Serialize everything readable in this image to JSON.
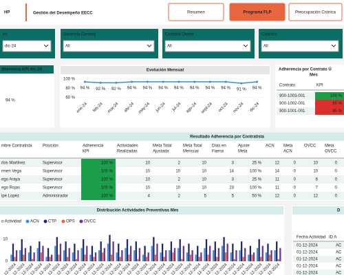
{
  "header": {
    "logo": "HP",
    "title": "Gestión del Desempeño EECC"
  },
  "buttons": [
    "Resumen",
    "Programa FLP",
    "Preocupación Crónica"
  ],
  "filters": [
    {
      "label": "es",
      "value": "dic-24"
    },
    {
      "label": "Gerencia General",
      "value": "All"
    },
    {
      "label": "Contract Owner",
      "value": "All"
    },
    {
      "label": "Contrato",
      "value": "All"
    }
  ],
  "kpi_card": {
    "title": "dherencia KPI dic-24",
    "value": "94 %"
  },
  "chart_data": [
    {
      "type": "line",
      "title": "Evolución Mensual",
      "color": "#2f8fde",
      "label_color": "#d9302b",
      "categories": [
        "ene-24",
        "feb-24",
        "mar-24",
        "abr-24",
        "may-24",
        "jun-24",
        "jul-24",
        "ago-24",
        "sept-24",
        "oct-24",
        "nov-24",
        "dic-24"
      ],
      "values": [
        94,
        92,
        92,
        94,
        94,
        94,
        94,
        94,
        94,
        94,
        91,
        94
      ],
      "value_labels": [
        "94 %",
        "92 %",
        "92 %",
        "94 %",
        "94 %",
        "94 %",
        "94 %",
        "94 %",
        "94 %",
        "94 %",
        "91 %",
        "94 %"
      ],
      "ylim": [
        60,
        100
      ],
      "yticks": [
        {
          "value": 60,
          "label": "60 %"
        },
        {
          "value": 80,
          "label": "80 %"
        },
        {
          "value": 100,
          "label": "100 %"
        }
      ],
      "grid": true
    },
    {
      "type": "bar",
      "title": "Distribución Actividades Preventivas Mes",
      "legend_title": "o Actividad",
      "categories": [
        "01-12-2024",
        "02-12-2024",
        "03-12-2024",
        "04-12-2024",
        "05-12-2024",
        "06-12-2024",
        "07-12-2024",
        "08-12-2024",
        "09-12-2024",
        "10-12-2024",
        "11-12-2024",
        "12-12-2024",
        "13-12-2024",
        "14-12-2024",
        "15-12-2024",
        "16-12-2024",
        "17-12-2024",
        "18-12-2024",
        "19-12-2024",
        "20-12-2024",
        "21-12-2024",
        "22-12-2024",
        "23-12-2024",
        "24-12-2024",
        "25-12-2024",
        "26-12-2024",
        "27-12-2024",
        "28-12-2024",
        "29-12-2024",
        "30-12-2024",
        "31-12-2024"
      ],
      "series": [
        {
          "name": "ACN",
          "color": "#3b8ede",
          "values": [
            3,
            5,
            4,
            6,
            2,
            7,
            5,
            4,
            6,
            3,
            5,
            8,
            4,
            6,
            5,
            3,
            7,
            4,
            5,
            6,
            4,
            3,
            6,
            5,
            7,
            4,
            5,
            3,
            6,
            4,
            5
          ]
        },
        {
          "name": "CTP",
          "color": "#1f2a6b",
          "values": [
            8,
            10,
            7,
            9,
            6,
            11,
            9,
            8,
            10,
            7,
            9,
            12,
            8,
            10,
            9,
            7,
            11,
            8,
            9,
            10,
            8,
            7,
            10,
            9,
            11,
            8,
            9,
            7,
            10,
            8,
            9
          ]
        },
        {
          "name": "OPS",
          "color": "#e8663d",
          "values": [
            2,
            3,
            1,
            4,
            2,
            3,
            2,
            1,
            3,
            2,
            4,
            3,
            2,
            3,
            1,
            2,
            3,
            2,
            4,
            1,
            3,
            2,
            3,
            2,
            4,
            1,
            2,
            3,
            2,
            3,
            1
          ]
        },
        {
          "name": "OVCC",
          "color": "#7030a0",
          "values": [
            5,
            6,
            4,
            7,
            3,
            8,
            6,
            5,
            7,
            4,
            6,
            9,
            5,
            7,
            6,
            4,
            8,
            5,
            6,
            7,
            5,
            4,
            7,
            6,
            8,
            5,
            6,
            4,
            7,
            5,
            6
          ]
        }
      ],
      "ylim": [
        0,
        15
      ],
      "yticks": [
        0,
        10
      ]
    }
  ],
  "contract_table": {
    "title": [
      "Adherencia por Contrato Ú",
      "Mes"
    ],
    "columns": [
      "Contrato",
      "KPI"
    ],
    "rows": [
      [
        "900-1003-001",
        "100 %"
      ],
      [
        "900-1002-001",
        "85 %"
      ],
      [
        "900-1001-001",
        "85 %"
      ]
    ],
    "kpi_colors": [
      "#1a9e4a",
      "#d9302b",
      "#d9302b"
    ]
  },
  "main_table": {
    "title": "Resultado Adherencia por Contratista",
    "columns": [
      [
        "mbre Contratista"
      ],
      [
        "Posición"
      ],
      [
        "Adherencia",
        "KPI"
      ],
      [
        "Actividades",
        "Realizadas"
      ],
      [
        "Meta Total",
        "Ajustada"
      ],
      [
        "Meta Total",
        "Mensual"
      ],
      [
        "Días en",
        "Faena"
      ],
      [
        "Ajuste",
        "Meta"
      ],
      [
        "ACN"
      ],
      [
        "Meta",
        "ACN"
      ],
      [
        "OVCC"
      ],
      [
        "Meta",
        "OVCC"
      ]
    ],
    "rows": [
      [
        "rlos Martínez",
        "Supervisor",
        "100 %",
        10,
        2,
        10,
        3,
        "25 %",
        12,
        0,
        10,
        0
      ],
      [
        "rmen Vega",
        "Supervisor",
        "100 %",
        10,
        10,
        10,
        14,
        "100 %",
        14,
        0,
        10,
        0
      ],
      [
        "ego Araya",
        "Supervisor",
        "100 %",
        10,
        2,
        10,
        3,
        "25 %",
        11,
        0,
        6,
        0
      ],
      [
        "ego Rojas",
        "Supervisor",
        "100 %",
        10,
        10,
        10,
        23,
        "100 %",
        11,
        0,
        7,
        0
      ],
      [
        "ipe Lopez",
        "Administrador",
        "100 %",
        4,
        2,
        5,
        5,
        "50 %",
        12,
        0,
        12,
        0
      ]
    ]
  },
  "detail_table": {
    "title": "D",
    "columns": [
      "Fecha Actividad",
      "ID A"
    ],
    "rows": [
      [
        "01-12-2024",
        "AC"
      ],
      [
        "01-12-2024",
        "AC"
      ],
      [
        "01-12-2024",
        "AC"
      ],
      [
        "01-12-2024",
        "AC"
      ],
      [
        "01-12-2024",
        "AC"
      ]
    ]
  }
}
